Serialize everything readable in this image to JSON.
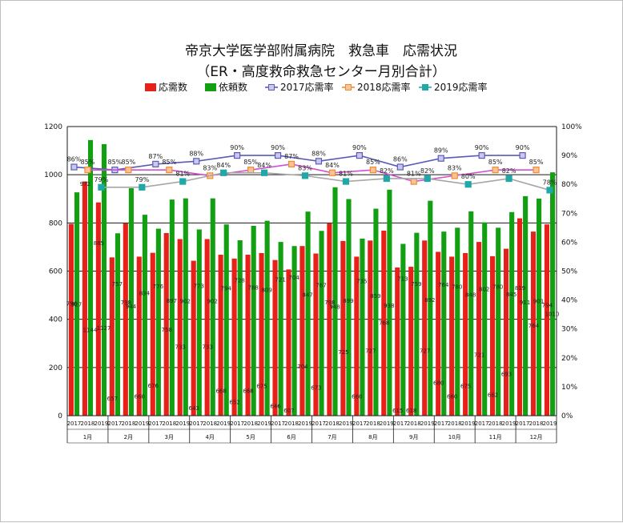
{
  "chart_data": {
    "type": "bar",
    "title": "帝京大学医学部附属病院　救急車　応需状況",
    "subtitle": "（ER・高度救命救急センター月別合計）",
    "y_left": {
      "ylim": [
        0,
        1200
      ],
      "ticks": [
        "0",
        "200",
        "400",
        "600",
        "800",
        "1000",
        "1200"
      ]
    },
    "y_right": {
      "ylim": [
        0,
        100
      ],
      "ticks": [
        "0%",
        "10%",
        "20%",
        "30%",
        "40%",
        "50%",
        "60%",
        "70%",
        "80%",
        "90%",
        "100%"
      ]
    },
    "months": [
      "1月",
      "2月",
      "3月",
      "4月",
      "5月",
      "6月",
      "7月",
      "8月",
      "9月",
      "10月",
      "11月",
      "12月"
    ],
    "years": [
      "2017",
      "2018",
      "2019"
    ],
    "legend": [
      "応需数",
      "依頼数",
      "2017応需率",
      "2018応需率",
      "2019応需率"
    ],
    "colors": {
      "accepted": "#e8201a",
      "requests": "#12a012",
      "rate2017": "#5b5bb5",
      "rate2018": "#f28a30",
      "rate2019": "#20a8a8",
      "rate2018_line": "#d14fd1",
      "rate2019_line": "#a6a6a6"
    },
    "series": [
      {
        "name": "応需数",
        "values": [
          796,
          972,
          885,
          657,
          798,
          660,
          676,
          758,
          733,
          643,
          733,
          668,
          652,
          668,
          675,
          646,
          607,
          704,
          673,
          798,
          725,
          660,
          727,
          768,
          615,
          618,
          727,
          680,
          660,
          675,
          721,
          662,
          693,
          819,
          764,
          794
        ]
      },
      {
        "name": "依頼数",
        "values": [
          927,
          1144,
          1127,
          757,
          944,
          834,
          776,
          897,
          902,
          773,
          902,
          794,
          728,
          788,
          809,
          721,
          704,
          847,
          767,
          948,
          899,
          735,
          859,
          938,
          713,
          759,
          892,
          764,
          780,
          848,
          802,
          780,
          845,
          911,
          901,
          1010
        ]
      },
      {
        "name": "2017応需率",
        "values": [
          86,
          85,
          87,
          88,
          90,
          90,
          88,
          90,
          86,
          89,
          90,
          90
        ]
      },
      {
        "name": "2018応需率",
        "values": [
          85,
          85,
          85,
          83,
          85,
          87,
          84,
          85,
          81,
          83,
          85,
          85
        ]
      },
      {
        "name": "2019応需率",
        "values": [
          79,
          79,
          81,
          84,
          84,
          83,
          81,
          82,
          82,
          80,
          82,
          78
        ]
      }
    ],
    "bar_labels": {
      "accepted": [
        "796",
        "972",
        "885",
        "657",
        "798",
        "660",
        "676",
        "758",
        "733",
        "643",
        "733",
        "668",
        "652",
        "668",
        "675",
        "646",
        "607",
        "704",
        "673",
        "798",
        "725",
        "660",
        "727",
        "768",
        "615",
        "618",
        "727",
        "680",
        "660",
        "675",
        "721",
        "662",
        "693",
        "819",
        "764",
        "794"
      ],
      "requests": [
        "927",
        "1144",
        "1127",
        "757",
        "944",
        "834",
        "776",
        "897",
        "902",
        "773",
        "902",
        "794",
        "728",
        "788",
        "809",
        "721",
        "704",
        "847",
        "767",
        "948",
        "899",
        "735",
        "859",
        "938",
        "713",
        "759",
        "892",
        "764",
        "780",
        "848",
        "802",
        "780",
        "845",
        "911",
        "901",
        "1010"
      ]
    },
    "rate_labels": {
      "rate2017": [
        "86%",
        "85%",
        "87%",
        "88%",
        "90%",
        "90%",
        "88%",
        "90%",
        "86%",
        "89%",
        "90%",
        "90%"
      ],
      "rate2018": [
        "85%",
        "85%",
        "85%",
        "83%",
        "85%",
        "87%",
        "84%",
        "85%",
        "81%",
        "83%",
        "85%",
        "85%"
      ],
      "rate2019": [
        "79%",
        "79%",
        "81%",
        "84%",
        "84%",
        "83%",
        "81%",
        "82%",
        "82%",
        "80%",
        "82%",
        "78%"
      ]
    },
    "grid": true,
    "legend_position": "top"
  }
}
